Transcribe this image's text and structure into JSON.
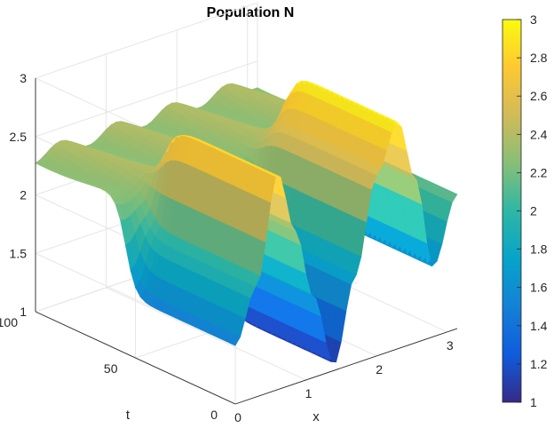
{
  "chart_data": {
    "type": "surface3d",
    "title": "Population N",
    "xlabel": "x",
    "ylabel": "t",
    "zlabel": "",
    "xlim": [
      0,
      3.14
    ],
    "ylim": [
      0,
      100
    ],
    "zlim": [
      1,
      3
    ],
    "x_ticks": [
      "0",
      "1",
      "2",
      "3"
    ],
    "y_ticks": [
      "0",
      "50",
      "100"
    ],
    "z_ticks": [
      "1",
      "1.5",
      "2",
      "2.5",
      "3"
    ],
    "grid": true,
    "colormap": "parula",
    "colorbar": {
      "limits": [
        1,
        3
      ],
      "ticks": [
        "1",
        "1.2",
        "1.4",
        "1.6",
        "1.8",
        "2",
        "2.2",
        "2.4",
        "2.6",
        "2.8",
        "3"
      ]
    },
    "surface": {
      "steady_value": 2.33,
      "transition_t": 55,
      "pattern_profile_x": [
        0,
        0.3,
        0.6,
        0.85,
        1.1,
        1.4,
        1.7,
        2.0,
        2.3,
        2.55,
        2.8,
        3.14
      ],
      "pattern_profile_N": [
        1.5,
        1.95,
        2.85,
        2.3,
        1.7,
        1.05,
        1.75,
        2.55,
        2.95,
        2.4,
        1.6,
        2.15
      ]
    },
    "colors": {
      "parula": [
        "#352a87",
        "#0f5cdd",
        "#1481d6",
        "#06a4ca",
        "#2eb7a4",
        "#87bf77",
        "#d1bb59",
        "#fec832",
        "#f9fb0e"
      ],
      "axis": "#262626",
      "grid": "#e6e6e6"
    }
  }
}
